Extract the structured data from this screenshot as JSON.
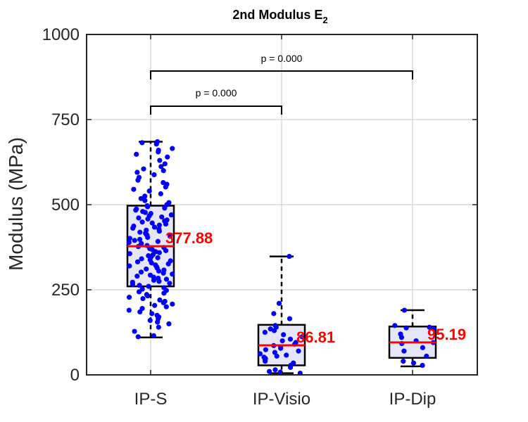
{
  "chart_data": {
    "type": "box",
    "title": "2nd Modulus E",
    "title_subscript": "2",
    "xlabel": "",
    "ylabel": "Modulus (MPa)",
    "ylim": [
      0,
      1000
    ],
    "yticks": [
      0,
      250,
      500,
      750,
      1000
    ],
    "grid": true,
    "categories": [
      "IP-S",
      "IP-Visio",
      "IP-Dip"
    ],
    "boxes": [
      {
        "category": "IP-S",
        "min": 110,
        "q1": 260,
        "median": 377.88,
        "q3": 497,
        "max": 685,
        "median_label": "377.88",
        "points": [
          685,
          682,
          678,
          665,
          660,
          655,
          648,
          640,
          630,
          620,
          612,
          605,
          600,
          595,
          588,
          580,
          572,
          565,
          560,
          552,
          545,
          540,
          532,
          525,
          518,
          512,
          506,
          500,
          497,
          494,
          490,
          487,
          484,
          480,
          477,
          474,
          470,
          467,
          464,
          461,
          458,
          455,
          452,
          449,
          446,
          443,
          440,
          437,
          434,
          431,
          428,
          425,
          422,
          419,
          416,
          413,
          410,
          407,
          404,
          401,
          398,
          395,
          392,
          389,
          386,
          383,
          380,
          377,
          374,
          371,
          368,
          365,
          362,
          359,
          356,
          353,
          350,
          347,
          344,
          341,
          338,
          335,
          332,
          329,
          326,
          323,
          320,
          317,
          314,
          311,
          308,
          305,
          302,
          299,
          296,
          293,
          290,
          287,
          284,
          281,
          278,
          275,
          272,
          269,
          266,
          263,
          260,
          256,
          252,
          248,
          244,
          240,
          236,
          232,
          228,
          224,
          220,
          216,
          212,
          208,
          204,
          200,
          195,
          190,
          185,
          180,
          175,
          170,
          165,
          160,
          155,
          150,
          140,
          128,
          115,
          112
        ]
      },
      {
        "category": "IP-Visio",
        "min": 5,
        "q1": 28,
        "median": 86.81,
        "q3": 147,
        "max": 348,
        "median_label": "86.81",
        "points": [
          348,
          210,
          180,
          165,
          145,
          140,
          135,
          130,
          125,
          118,
          112,
          105,
          100,
          95,
          90,
          86,
          82,
          78,
          74,
          70,
          66,
          62,
          58,
          55,
          52,
          48,
          45,
          40,
          35,
          28,
          22,
          15,
          10,
          8,
          5
        ]
      },
      {
        "category": "IP-Dip",
        "min": 25,
        "q1": 50,
        "median": 95.19,
        "q3": 142,
        "max": 190,
        "median_label": "95.19",
        "points": [
          190,
          145,
          140,
          138,
          135,
          120,
          110,
          100,
          95,
          92,
          80,
          70,
          55,
          40,
          35,
          28
        ]
      }
    ],
    "significance": [
      {
        "from": "IP-S",
        "to": "IP-Visio",
        "label": "p = 0.000"
      },
      {
        "from": "IP-S",
        "to": "IP-Dip",
        "label": "p = 0.000"
      }
    ],
    "colors": {
      "box_fill": "#e6e6fa",
      "box_edge": "#000000",
      "median": "#ff0000",
      "points": "#0000ff",
      "label": "#ff0000",
      "grid": "#d9d9d9"
    }
  }
}
